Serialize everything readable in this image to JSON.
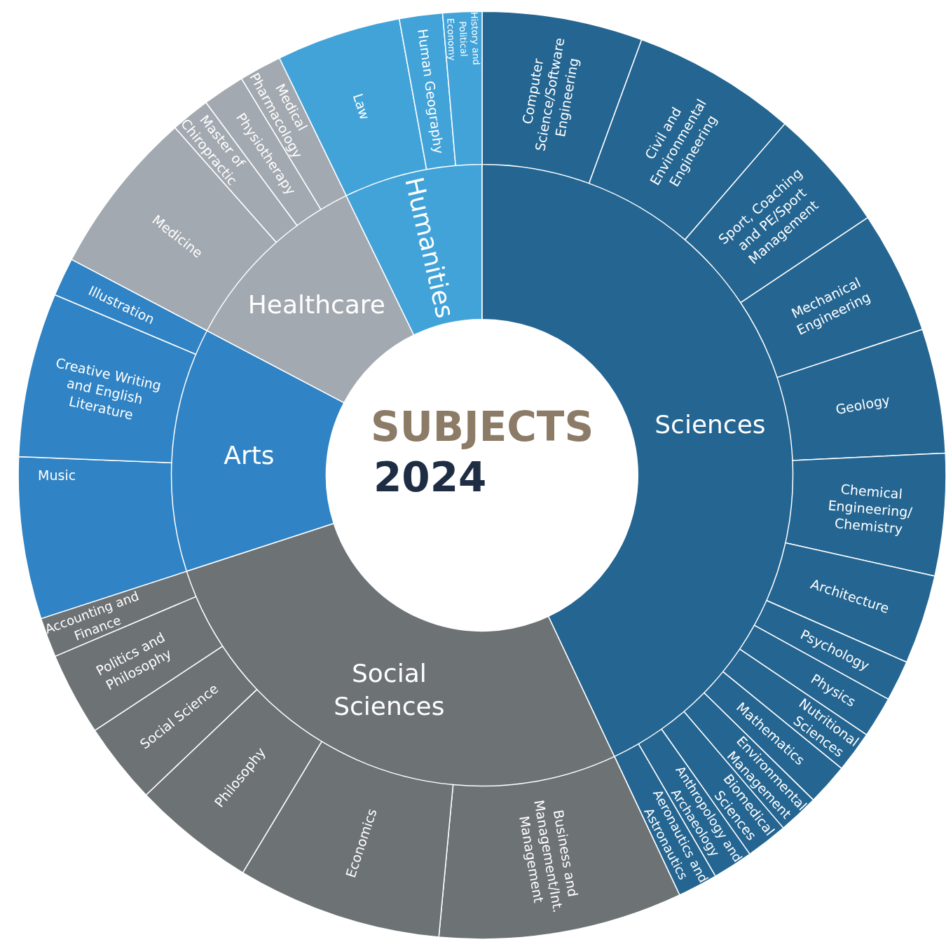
{
  "chart_data": [
    {
      "type": "donut",
      "title": "SUBJECTS",
      "subtitle": "2024",
      "categories": [
        "Sciences",
        "Social Sciences",
        "Arts",
        "Healthcare",
        "Humanities"
      ],
      "values": [
        43.0,
        27.0,
        12.7,
        10.1,
        7.2
      ],
      "colors": [
        "#246591",
        "#6d7275",
        "#3083c4",
        "#a3a9b0",
        "#42a3d9"
      ]
    },
    {
      "type": "donut",
      "categories": [
        "Computer Science/Software Engineering",
        "Civil and Environmental Engineering",
        "Sport, Coaching and PE/Sport Management",
        "Mechanical Engineering",
        "Geology",
        "Chemical Engineering/ Chemistry",
        "Architecture",
        "Psychology",
        "Physics",
        "Nutritional Sciences",
        "Mathematics",
        "Environmental Management",
        "Biomedical Sciences",
        "Anthropology and Archaeology",
        "Aeronautics and Astronautics",
        "Business and Management/Int. Management",
        "Economics",
        "Philosophy",
        "Social Science",
        "Politics and Philosophy",
        "Accounting and Finance",
        "Music",
        "Creative Writing and English Literature",
        "Illustration",
        "Medicine",
        "Master of Chiropractic",
        "Physiotherapy",
        "Medical Pharmacology",
        "Law",
        "Human Geography",
        "History and Political Economy"
      ],
      "values": [
        5.59,
        5.73,
        4.31,
        4.28,
        4.33,
        4.25,
        3.11,
        1.42,
        1.43,
        1.44,
        1.45,
        1.41,
        1.46,
        1.4,
        1.39,
        8.49,
        7.14,
        4.27,
        2.83,
        2.89,
        1.38,
        5.64,
        5.72,
        1.34,
        5.78,
        1.37,
        1.47,
        1.48,
        4.34,
        1.5,
        1.36
      ],
      "colors": [
        "#246591",
        "#246591",
        "#246591",
        "#246591",
        "#246591",
        "#246591",
        "#246591",
        "#246591",
        "#246591",
        "#246591",
        "#246591",
        "#246591",
        "#246591",
        "#246591",
        "#246591",
        "#6d7275",
        "#6d7275",
        "#6d7275",
        "#6d7275",
        "#6d7275",
        "#6d7275",
        "#3083c4",
        "#3083c4",
        "#3083c4",
        "#a3a9b0",
        "#a3a9b0",
        "#a3a9b0",
        "#a3a9b0",
        "#42a3d9",
        "#42a3d9",
        "#42a3d9"
      ]
    }
  ]
}
